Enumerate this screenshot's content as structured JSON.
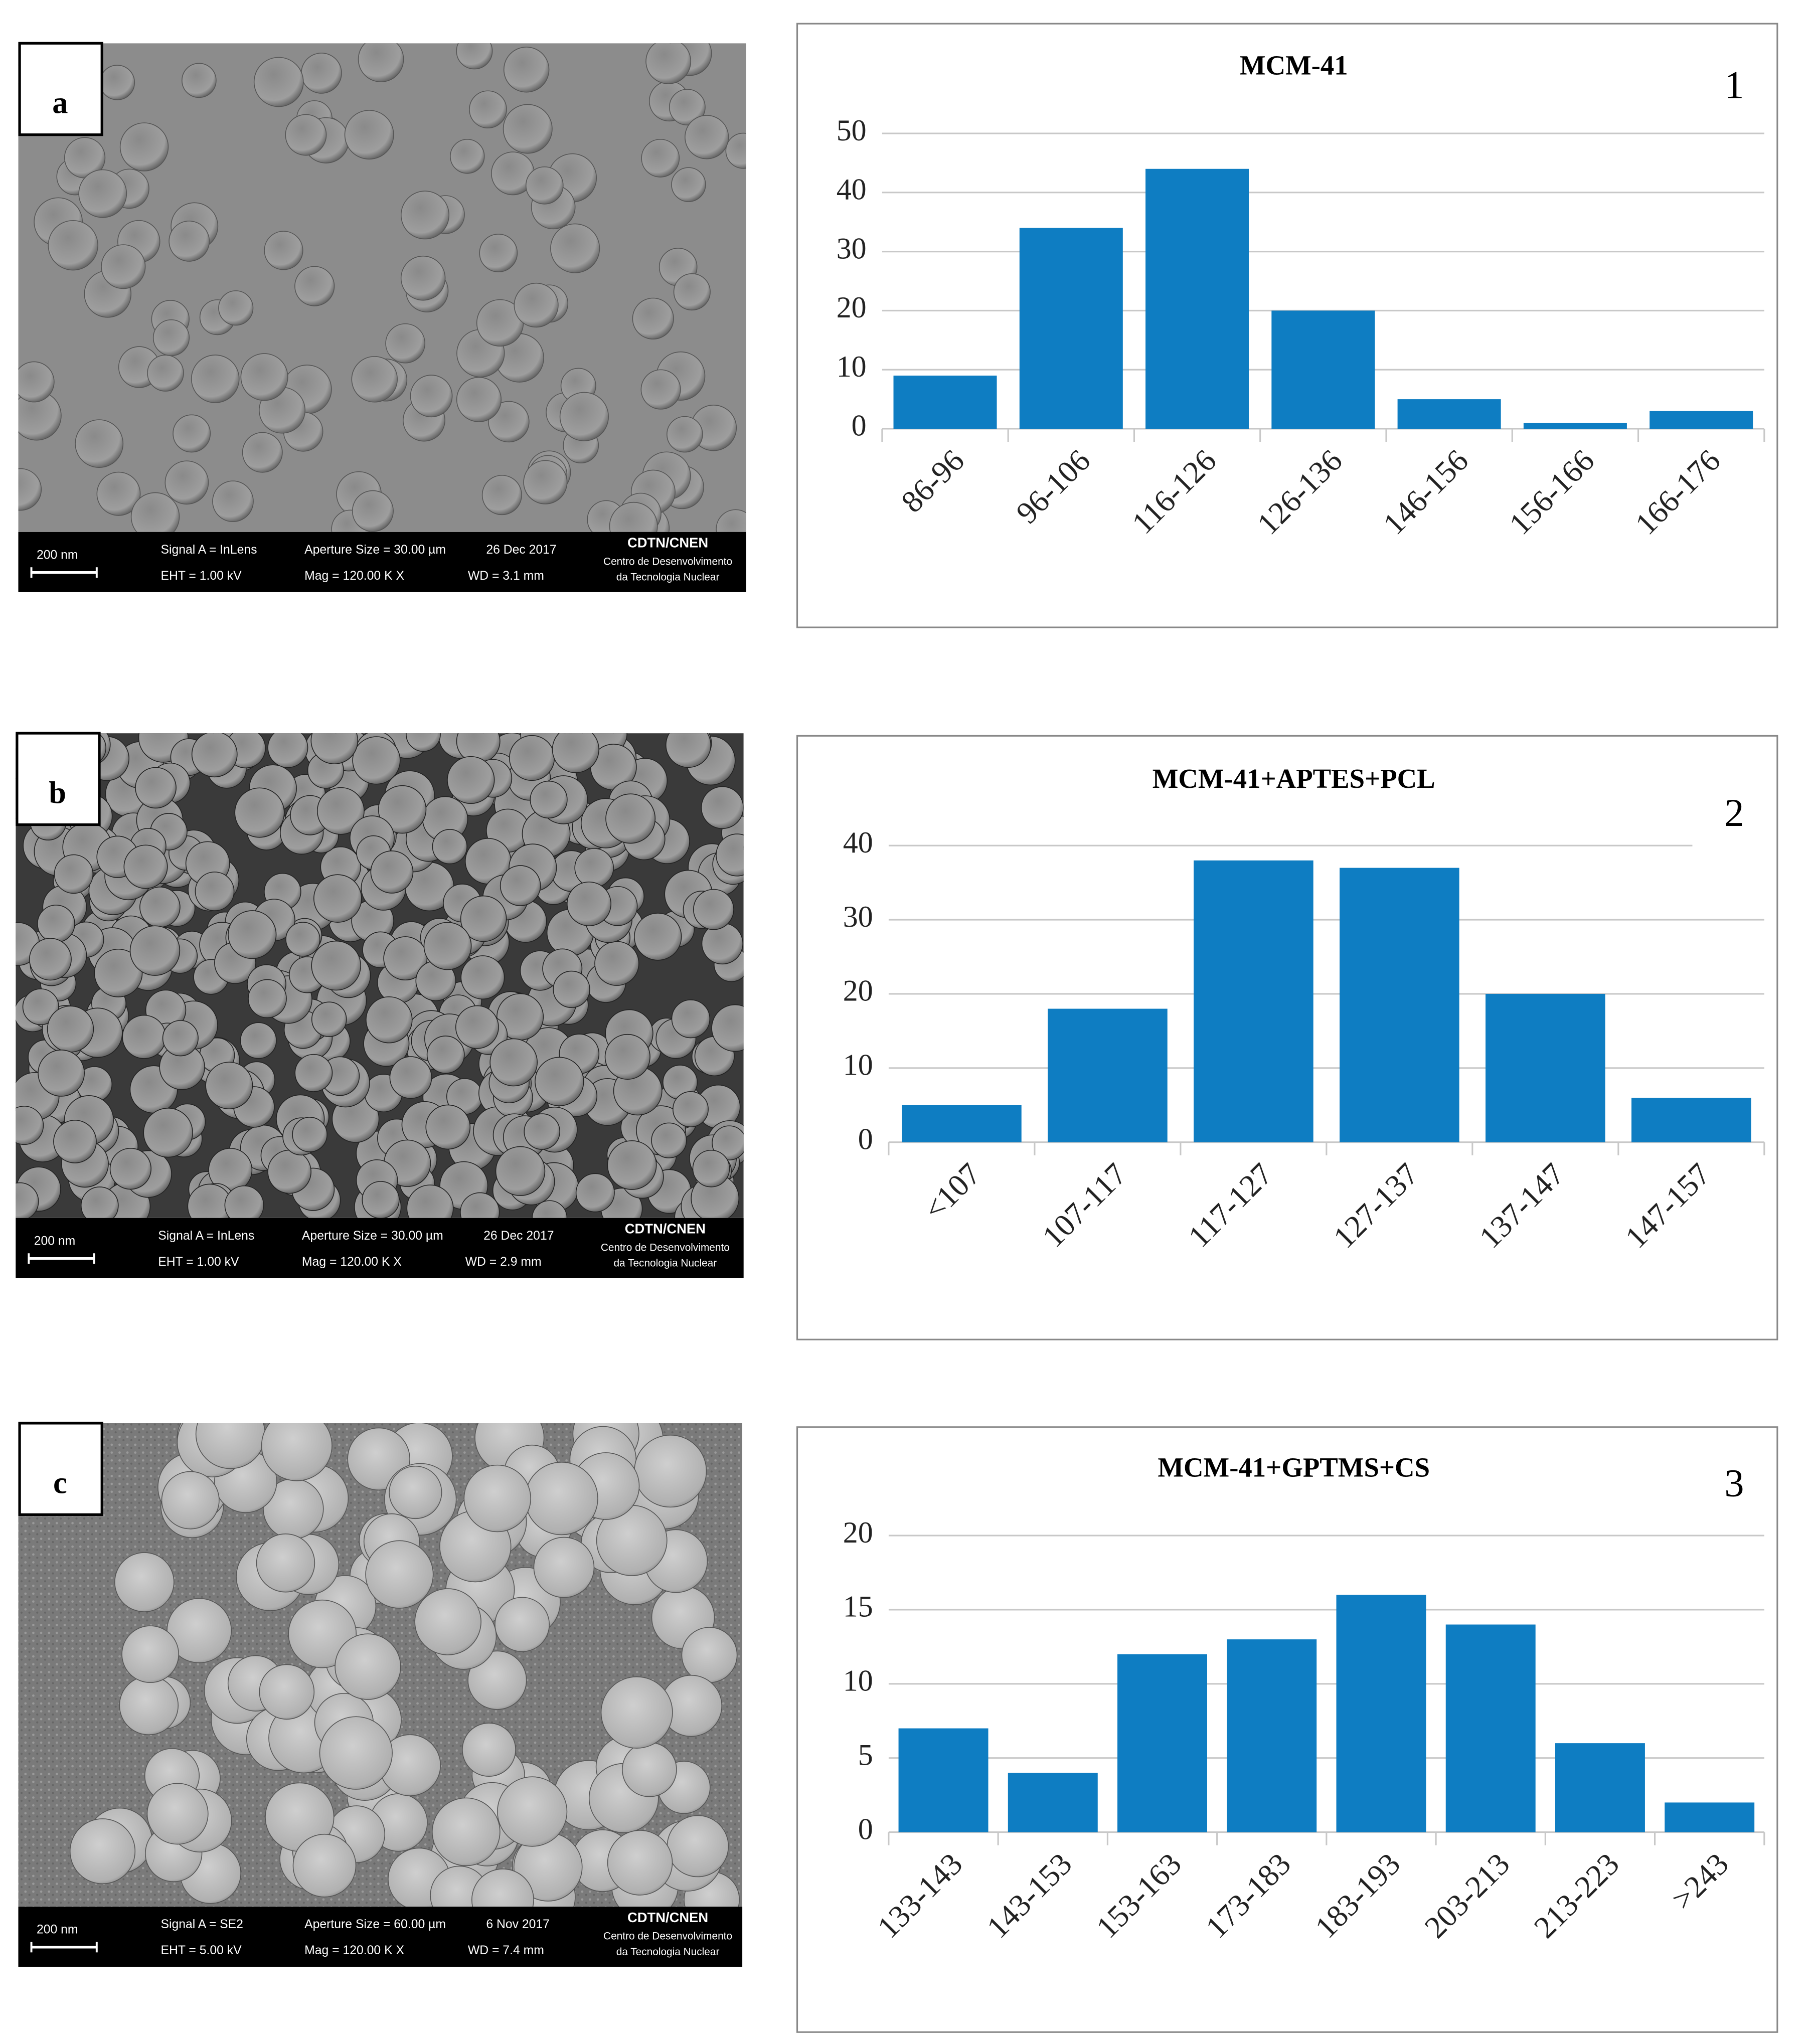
{
  "chart_data": [
    {
      "type": "bar",
      "title": "MCM-41",
      "annotation": "1",
      "categories": [
        "86-96",
        "96-106",
        "116-126",
        "126-136",
        "146-156",
        "156-166",
        "166-176"
      ],
      "values": [
        9,
        34,
        44,
        20,
        5,
        1,
        3
      ],
      "color": "#0e7dc2",
      "ylim": [
        0,
        50
      ],
      "yticks": [
        0,
        10,
        20,
        30,
        40,
        50
      ],
      "grid": true
    },
    {
      "type": "bar",
      "title": "MCM-41+APTES+PCL",
      "annotation": "2",
      "categories": [
        "<107",
        "107-117",
        "117-127",
        "127-137",
        "137-147",
        "147-157"
      ],
      "values": [
        5,
        18,
        38,
        37,
        20,
        6
      ],
      "color": "#0e7dc2",
      "ylim": [
        0,
        40
      ],
      "yticks": [
        0,
        10,
        20,
        30,
        40
      ],
      "grid": true
    },
    {
      "type": "bar",
      "title": "MCM-41+GPTMS+CS",
      "annotation": "3",
      "categories": [
        "133-143",
        "143-153",
        "153-163",
        "173-183",
        "183-193",
        "203-213",
        "213-223",
        ">243"
      ],
      "values": [
        7,
        4,
        12,
        13,
        16,
        14,
        6,
        2
      ],
      "color": "#0e7dc2",
      "ylim": [
        0,
        20
      ],
      "yticks": [
        0,
        5,
        10,
        15,
        20
      ],
      "grid": true
    }
  ],
  "images": [
    {
      "label": "a",
      "scale_bar": "200 nm",
      "signal": "Signal A = InLens",
      "aperture": "Aperture Size = 30.00 µm",
      "date": "26 Dec 2017",
      "eht": "EHT =  1.00 kV",
      "mag": "Mag =  120.00 K X",
      "wd": "WD =  3.1 mm",
      "institution": "CDTN/CNEN",
      "institution_name": [
        "Centro de Desenvolvimento",
        "da Tecnologia Nuclear"
      ]
    },
    {
      "label": "b",
      "scale_bar": "200 nm",
      "signal": "Signal A = InLens",
      "aperture": "Aperture Size = 30.00 µm",
      "date": "26 Dec 2017",
      "eht": "EHT =  1.00 kV",
      "mag": "Mag =  120.00 K X",
      "wd": "WD =  2.9 mm",
      "institution": "CDTN/CNEN",
      "institution_name": [
        "Centro de Desenvolvimento",
        "da Tecnologia Nuclear"
      ]
    },
    {
      "label": "c",
      "scale_bar": "200 nm",
      "signal": "Signal A = SE2",
      "aperture": "Aperture Size = 60.00 µm",
      "date": "6 Nov 2017",
      "eht": "EHT =  5.00 kV",
      "mag": "Mag =  120.00 K X",
      "wd": "WD =  7.4 mm",
      "institution": "CDTN/CNEN",
      "institution_name": [
        "Centro de Desenvolvimento",
        "da Tecnologia Nuclear"
      ]
    }
  ]
}
